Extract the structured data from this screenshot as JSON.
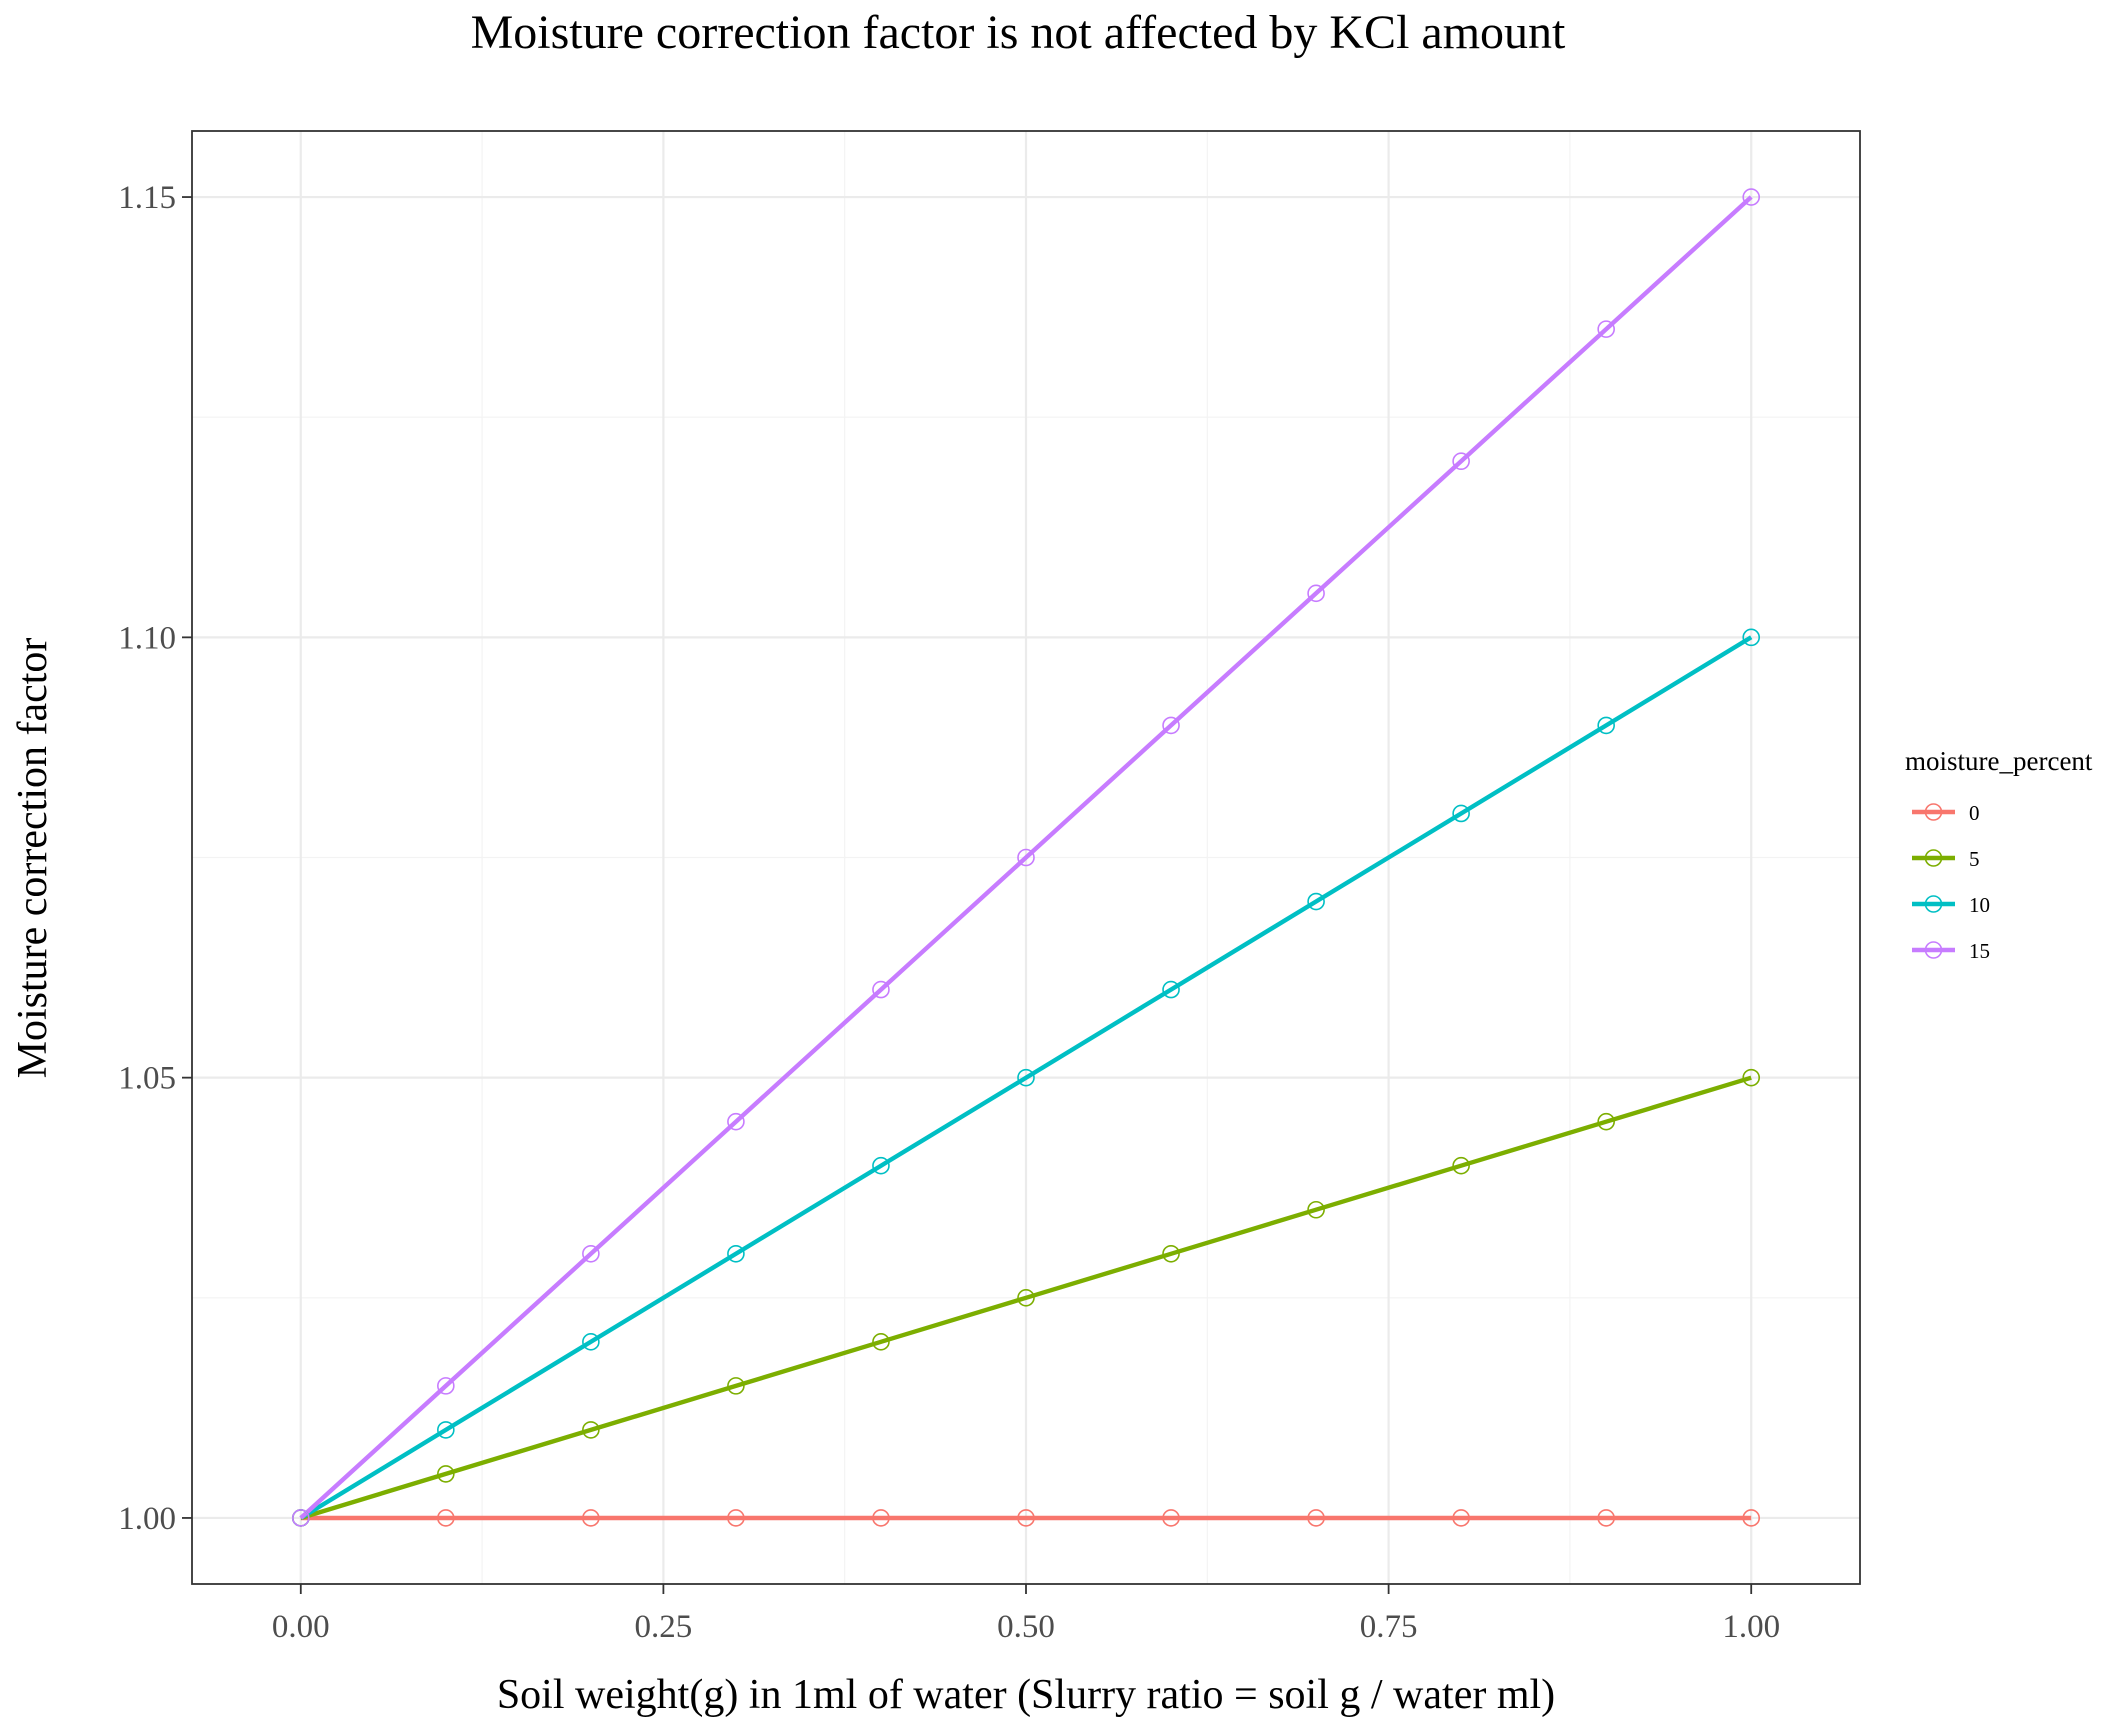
{
  "chart_data": {
    "type": "line",
    "title": "Moisture correction factor is not affected by KCl amount",
    "xlabel": "Soil weight(g) in 1ml of water (Slurry ratio = soil g / water ml)",
    "ylabel": "Moisture correction factor",
    "xlim": [
      -0.075,
      1.075
    ],
    "ylim": [
      0.9925,
      1.1575
    ],
    "x_ticks": [
      "0.00",
      "0.25",
      "0.50",
      "0.75",
      "1.00"
    ],
    "y_ticks": [
      "1.00",
      "1.05",
      "1.10",
      "1.15"
    ],
    "grid": true,
    "markers": "open-circle",
    "legend": {
      "title": "moisture_percent",
      "position": "right"
    },
    "x": [
      0.0,
      0.1,
      0.2,
      0.3,
      0.4,
      0.5,
      0.6,
      0.7,
      0.8,
      0.9,
      1.0
    ],
    "series": [
      {
        "name": "0",
        "color": "#F8766D",
        "values": [
          1.0,
          1.0,
          1.0,
          1.0,
          1.0,
          1.0,
          1.0,
          1.0,
          1.0,
          1.0,
          1.0
        ]
      },
      {
        "name": "5",
        "color": "#7CAE00",
        "values": [
          1.0,
          1.005,
          1.01,
          1.015,
          1.02,
          1.025,
          1.03,
          1.035,
          1.04,
          1.045,
          1.05
        ]
      },
      {
        "name": "10",
        "color": "#00BFC4",
        "values": [
          1.0,
          1.01,
          1.02,
          1.03,
          1.04,
          1.05,
          1.06,
          1.07,
          1.08,
          1.09,
          1.1
        ]
      },
      {
        "name": "15",
        "color": "#C77CFF",
        "values": [
          1.0,
          1.015,
          1.03,
          1.045,
          1.06,
          1.075,
          1.09,
          1.105,
          1.12,
          1.135,
          1.15
        ]
      }
    ]
  }
}
